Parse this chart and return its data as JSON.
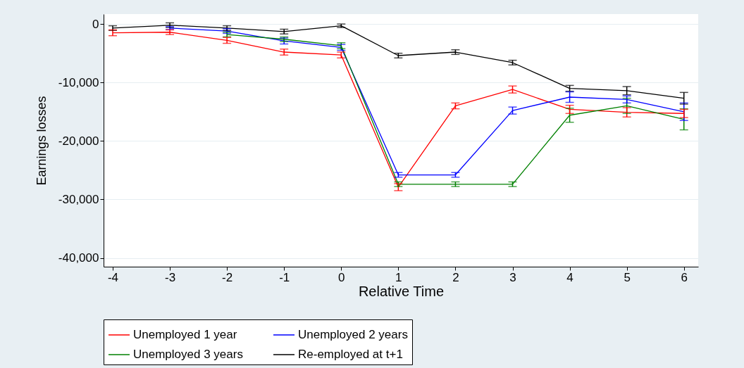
{
  "chart_data": {
    "type": "line",
    "xlabel": "Relative Time",
    "ylabel": "Earnings losses",
    "x": [
      -4,
      -3,
      -2,
      -1,
      0,
      1,
      2,
      3,
      4,
      5,
      6
    ],
    "xlim": [
      -4.16,
      6.25
    ],
    "xticks": [
      {
        "value": -4,
        "label": "-4"
      },
      {
        "value": -3,
        "label": "-3"
      },
      {
        "value": -2,
        "label": "-2"
      },
      {
        "value": -1,
        "label": "-1"
      },
      0,
      1,
      2,
      3,
      4,
      5,
      6
    ],
    "ylim": [
      -41500,
      1700
    ],
    "yticks": [
      0,
      {
        "value": -10000,
        "label": "-10,000"
      },
      {
        "value": -20000,
        "label": "-20,000"
      },
      {
        "value": -30000,
        "label": "-30,000"
      },
      {
        "value": -40000,
        "label": "-40,000"
      }
    ],
    "grid": "y",
    "legend": "bottom",
    "marker": "none",
    "line_style": "solid",
    "series": [
      {
        "name": "Unemployed 1 year",
        "color": "#ff0000",
        "values": [
          -1500,
          -1400,
          -2800,
          -4800,
          -5300,
          -27900,
          -14000,
          -11200,
          -14600,
          -15100,
          -15300
        ],
        "errors": [
          500,
          400,
          500,
          500,
          500,
          600,
          500,
          600,
          700,
          800,
          700
        ]
      },
      {
        "name": "Unemployed 2 years",
        "color": "#0000ff",
        "values": [
          null,
          -700,
          -1200,
          -2900,
          -4000,
          -25800,
          -25800,
          -14800,
          -12500,
          -12900,
          -15000
        ],
        "errors": [
          null,
          250,
          400,
          500,
          500,
          400,
          400,
          600,
          900,
          600,
          1500
        ]
      },
      {
        "name": "Unemployed 3 years",
        "color": "#008000",
        "values": [
          null,
          null,
          -1800,
          -2600,
          -3700,
          -27400,
          -27400,
          -27400,
          -15600,
          -14000,
          -16300
        ],
        "errors": [
          null,
          null,
          400,
          400,
          500,
          400,
          400,
          400,
          1200,
          1300,
          1800
        ]
      },
      {
        "name": "Re-employed at t+1",
        "color": "#000000",
        "values": [
          -700,
          -200,
          -700,
          -1300,
          -300,
          -5400,
          -4800,
          -6600,
          -11000,
          -11400,
          -12700
        ],
        "errors": [
          400,
          400,
          400,
          400,
          300,
          400,
          400,
          400,
          500,
          700,
          1000
        ]
      }
    ]
  }
}
